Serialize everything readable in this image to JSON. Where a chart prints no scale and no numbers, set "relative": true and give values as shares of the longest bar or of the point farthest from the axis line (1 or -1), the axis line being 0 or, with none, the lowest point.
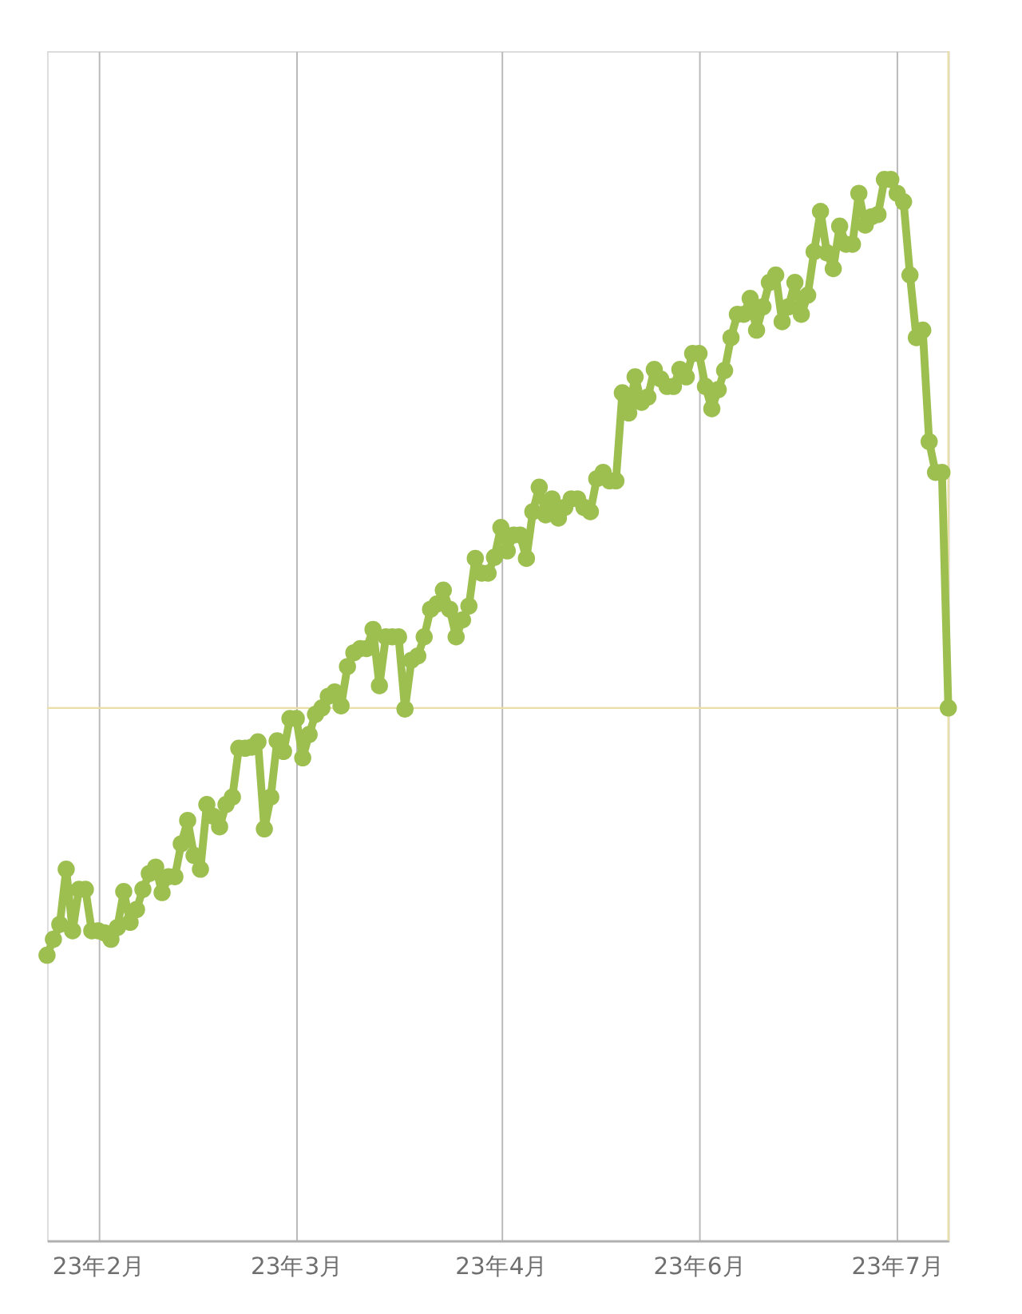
{
  "chart_data": {
    "type": "line",
    "relative": true,
    "marker": "circle",
    "line_style": "solid",
    "grid": "x",
    "categories": [
      null,
      null,
      null,
      null,
      null,
      null,
      null,
      null,
      "23年2月",
      null,
      null,
      null,
      null,
      null,
      null,
      null,
      null,
      null,
      null,
      null,
      null,
      null,
      null,
      null,
      null,
      null,
      null,
      null,
      null,
      null,
      null,
      null,
      null,
      null,
      null,
      null,
      null,
      null,
      null,
      "23年3月",
      null,
      null,
      null,
      null,
      null,
      null,
      null,
      null,
      null,
      null,
      null,
      null,
      null,
      null,
      null,
      null,
      null,
      null,
      null,
      null,
      null,
      null,
      null,
      null,
      null,
      null,
      null,
      null,
      null,
      null,
      null,
      "23年4月",
      null,
      null,
      null,
      null,
      null,
      null,
      null,
      null,
      null,
      null,
      null,
      null,
      null,
      null,
      null,
      null,
      null,
      null,
      null,
      null,
      null,
      null,
      null,
      null,
      null,
      null,
      null,
      null,
      null,
      null,
      "23年6月",
      null,
      null,
      null,
      null,
      null,
      null,
      null,
      null,
      null,
      null,
      null,
      null,
      null,
      null,
      null,
      null,
      null,
      null,
      null,
      null,
      null,
      null,
      null,
      null,
      null,
      null,
      null,
      null,
      null,
      null,
      "23年7月",
      null,
      null,
      null,
      null,
      null,
      null,
      null,
      null
    ],
    "series": [
      {
        "color": "#9dbf50",
        "values": [
          0.269,
          0.284,
          0.298,
          0.35,
          0.292,
          0.331,
          0.331,
          0.292,
          0.292,
          0.29,
          0.284,
          0.295,
          0.329,
          0.3,
          0.312,
          0.331,
          0.346,
          0.352,
          0.328,
          0.343,
          0.343,
          0.374,
          0.396,
          0.363,
          0.35,
          0.411,
          0.4,
          0.39,
          0.411,
          0.418,
          0.464,
          0.464,
          0.465,
          0.47,
          0.388,
          0.418,
          0.471,
          0.461,
          0.492,
          0.492,
          0.455,
          0.477,
          0.496,
          0.502,
          0.513,
          0.517,
          0.504,
          0.541,
          0.554,
          0.558,
          0.558,
          0.576,
          0.523,
          0.569,
          0.569,
          0.569,
          0.501,
          0.547,
          0.551,
          0.569,
          0.595,
          0.6,
          0.613,
          0.595,
          0.569,
          0.585,
          0.598,
          0.643,
          0.629,
          0.629,
          0.644,
          0.672,
          0.65,
          0.665,
          0.665,
          0.643,
          0.687,
          0.71,
          0.684,
          0.699,
          0.681,
          0.691,
          0.699,
          0.699,
          0.691,
          0.687,
          0.718,
          0.724,
          0.716,
          0.716,
          0.799,
          0.78,
          0.814,
          0.79,
          0.795,
          0.821,
          0.812,
          0.805,
          0.805,
          0.821,
          0.814,
          0.836,
          0.836,
          0.805,
          0.784,
          0.802,
          0.82,
          0.851,
          0.873,
          0.873,
          0.888,
          0.858,
          0.88,
          0.903,
          0.91,
          0.866,
          0.88,
          0.903,
          0.873,
          0.891,
          0.932,
          0.97,
          0.931,
          0.916,
          0.956,
          0.939,
          0.939,
          0.987,
          0.957,
          0.965,
          0.967,
          1.0,
          1.0,
          0.987,
          0.979,
          0.91,
          0.851,
          0.858,
          0.753,
          0.724,
          0.724,
          0.502
        ]
      }
    ],
    "ref_lines": [
      {
        "axis": "y",
        "value": 0.502,
        "color": "#e9dfa6"
      }
    ]
  }
}
